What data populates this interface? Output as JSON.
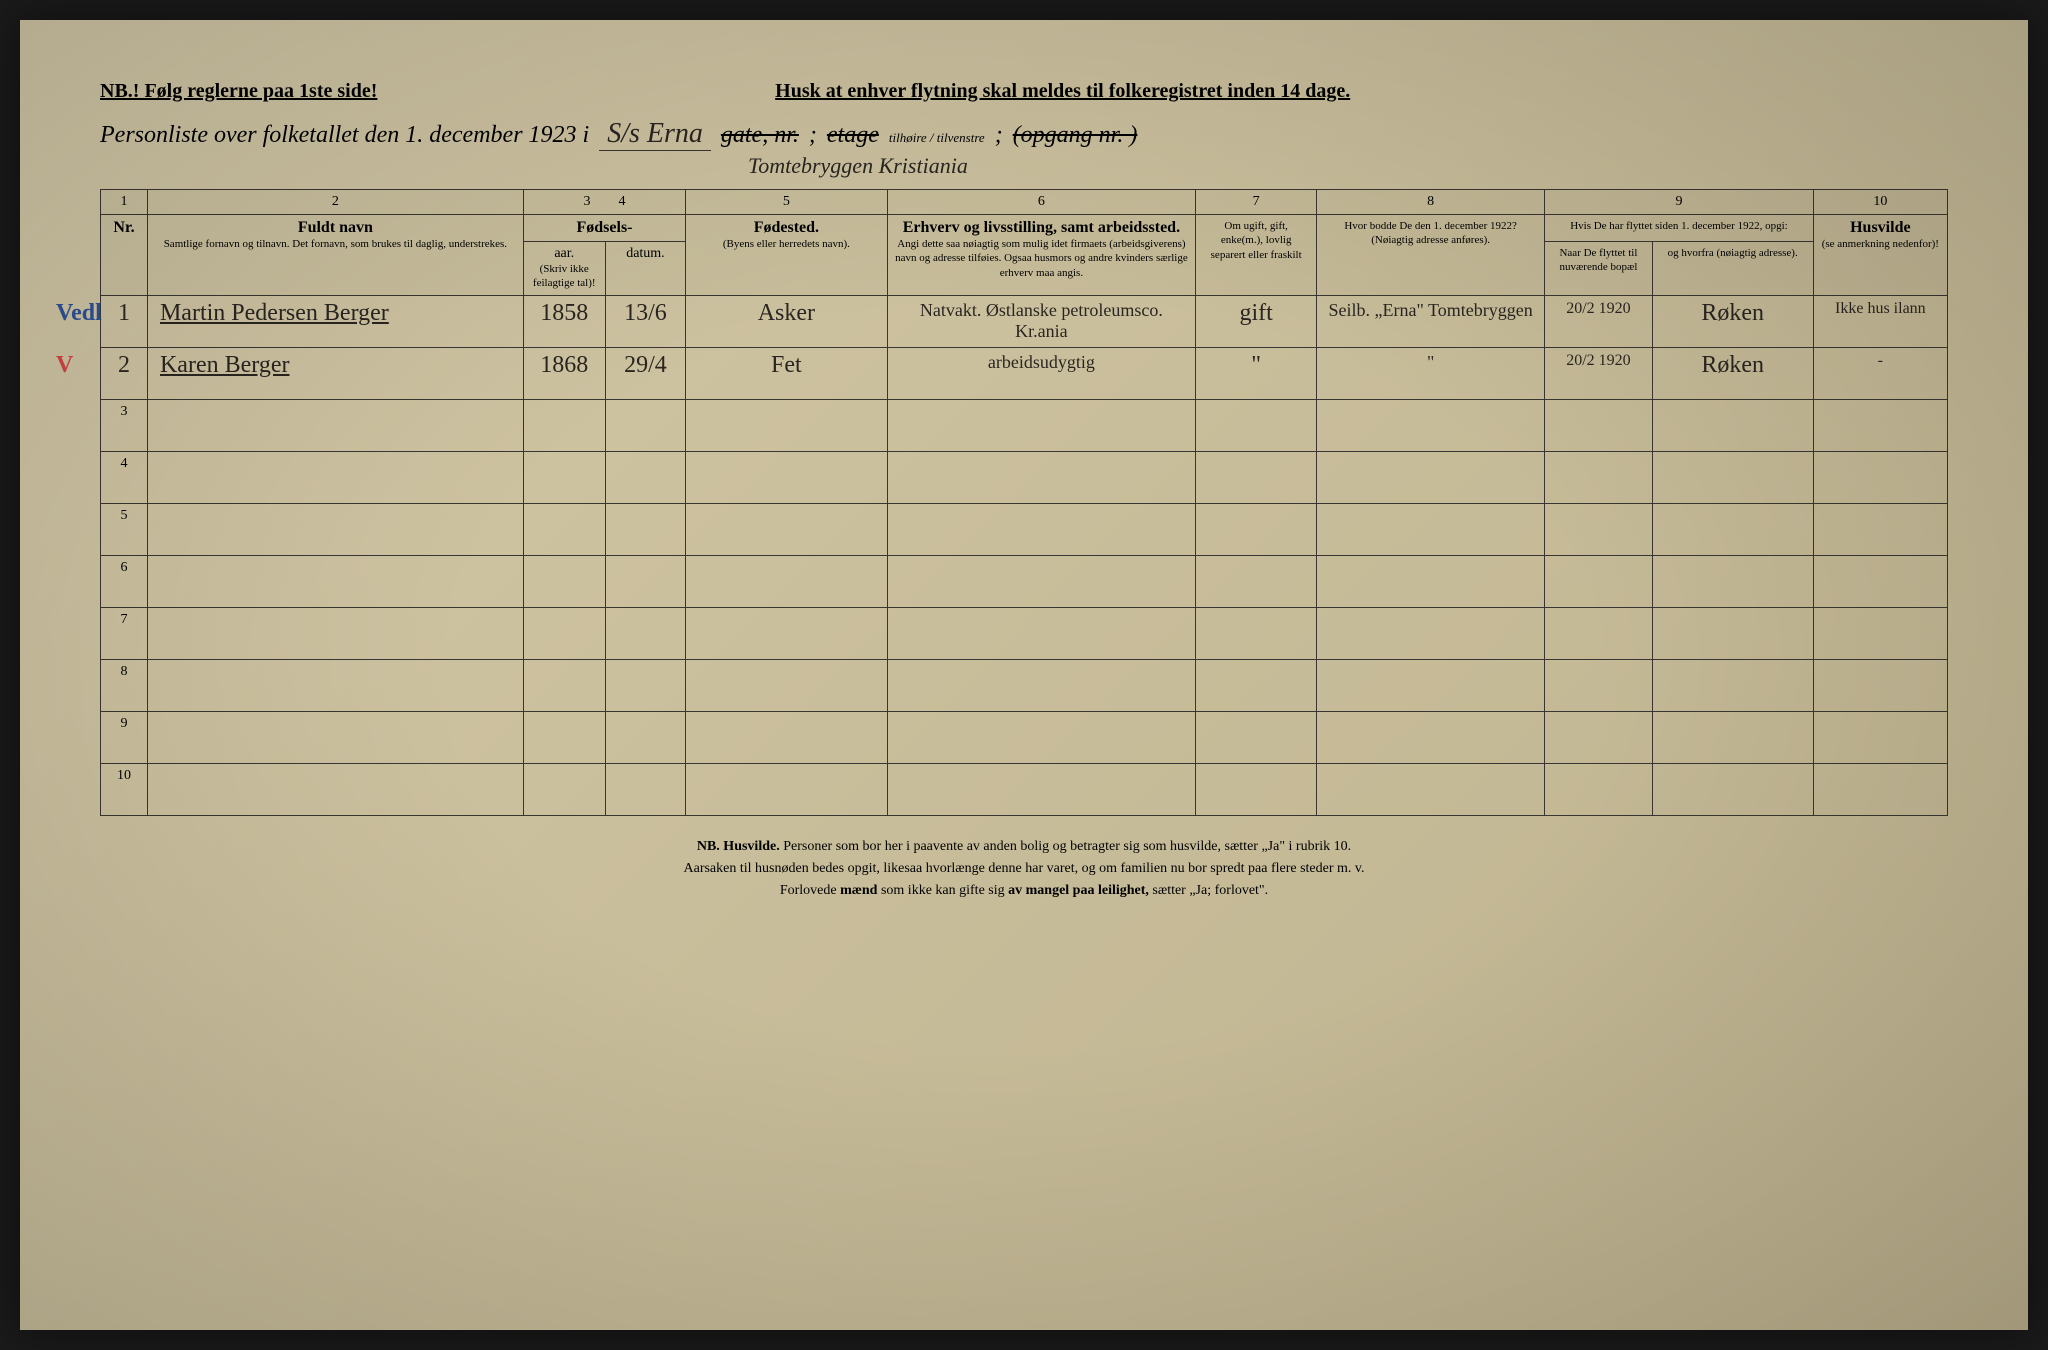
{
  "header": {
    "nb_text": "NB.! Følg reglerne paa 1ste side!",
    "reminder": "Husk at enhver flytning skal meldes til folkeregistret inden 14 dage."
  },
  "title": {
    "prefix": "Personliste over folketallet den 1. december 1923 i",
    "location_1": "S/s Erna",
    "location_2": "Tomtebryggen Kristiania",
    "gate_label": "gate, nr.",
    "etage_label": "etage",
    "side_labels": "tilhøire / tilvenstre",
    "opgang_label": "(opgang nr.      )"
  },
  "columns": {
    "numbers": [
      "1",
      "2",
      "3",
      "4",
      "5",
      "6",
      "7",
      "8",
      "9",
      "10"
    ],
    "headers": {
      "nr": "Nr.",
      "name": "Fuldt navn",
      "name_sub": "Samtlige fornavn og tilnavn. Det fornavn, som brukes til daglig, understrekes.",
      "birth": "Fødsels-",
      "birth_year": "aar.",
      "birth_date": "datum.",
      "birth_note": "(Skriv ikke feilagtige tal)!",
      "birthplace": "Fødested.",
      "birthplace_sub": "(Byens eller herredets navn).",
      "occupation": "Erhverv og livsstilling, samt arbeidssted.",
      "occupation_sub": "Angi dette saa nøiagtig som mulig idet firmaets (arbeidsgiverens) navn og adresse tilføies. Ogsaa husmors og andre kvinders særlige erhverv maa angis.",
      "marital": "Om ugift, gift, enke(m.), lovlig separert eller fraskilt",
      "prev_address": "Hvor bodde De den 1. december 1922?",
      "prev_address_sub": "(Nøiagtig adresse anføres).",
      "moved": "Hvis De har flyttet siden 1. december 1922, opgi:",
      "moved_when": "Naar De flyttet til nuværende bopæl",
      "moved_from": "og hvorfra (nøiagtig adresse).",
      "homeless": "Husvilde",
      "homeless_sub": "(se anmerkning nedenfor)!"
    }
  },
  "rows": [
    {
      "margin_note": "Vedl",
      "margin_color": "#2a4a8a",
      "nr": "1",
      "name": "Martin Pedersen Berger",
      "birth_year": "1858",
      "birth_date": "13/6",
      "birthplace": "Asker",
      "occupation": "Natvakt. Østlanske petroleumsco. Kr.ania",
      "marital": "gift",
      "prev_address": "Seilb. „Erna\" Tomtebryggen",
      "moved_when": "20/2 1920",
      "moved_from": "Røken",
      "homeless": "Ikke hus ilann"
    },
    {
      "margin_note": "V",
      "margin_color": "#c04040",
      "nr": "2",
      "name": "Karen Berger",
      "birth_year": "1868",
      "birth_date": "29/4",
      "birthplace": "Fet",
      "occupation": "arbeidsudygtig",
      "marital": "\"",
      "prev_address": "\"",
      "moved_when": "20/2 1920",
      "moved_from": "Røken",
      "homeless": "-"
    }
  ],
  "empty_row_count": 8,
  "footer": {
    "line1_bold": "NB. Husvilde.",
    "line1": "Personer som bor her i paavente av anden bolig og betragter sig som husvilde, sætter „Ja\" i rubrik 10.",
    "line2": "Aarsaken til husnøden bedes opgit, likesaa hvorlænge denne har varet, og om familien nu bor spredt paa flere steder m. v.",
    "line3_a": "Forlovede ",
    "line3_bold": "mænd",
    "line3_b": " som ikke kan gifte sig ",
    "line3_bold2": "av mangel paa leilighet,",
    "line3_c": " sætter „Ja; forlovet\"."
  },
  "styling": {
    "paper_color": "#d4c9a8",
    "ink_color": "#2a2520",
    "border_color": "#3a3530",
    "blue_pencil": "#2a4a8a",
    "red_pencil": "#c04040"
  }
}
